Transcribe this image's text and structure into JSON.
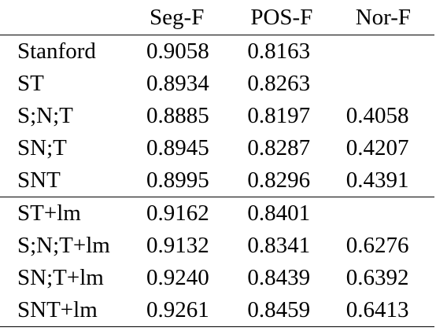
{
  "table": {
    "headers": [
      "",
      "Seg-F",
      "POS-F",
      "Nor-F"
    ],
    "groups": [
      {
        "rows": [
          {
            "label": "Stanford",
            "seg": "0.9058",
            "pos": "0.8163",
            "nor": "",
            "bold": [
              "seg"
            ]
          },
          {
            "label": "ST",
            "seg": "0.8934",
            "pos": "0.8263",
            "nor": "",
            "bold": []
          },
          {
            "label": "S;N;T",
            "seg": "0.8885",
            "pos": "0.8197",
            "nor": "0.4058",
            "bold": []
          },
          {
            "label": "SN;T",
            "seg": "0.8945",
            "pos": "0.8287",
            "nor": "0.4207",
            "bold": []
          },
          {
            "label": "SNT",
            "seg": "0.8995",
            "pos": "0.8296",
            "nor": "0.4391",
            "bold": [
              "pos",
              "nor"
            ]
          }
        ]
      },
      {
        "rows": [
          {
            "label": "ST+lm",
            "seg": "0.9162",
            "pos": "0.8401",
            "nor": "",
            "bold": []
          },
          {
            "label": "S;N;T+lm",
            "seg": "0.9132",
            "pos": "0.8341",
            "nor": "0.6276",
            "bold": []
          },
          {
            "label": "SN;T+lm",
            "seg": "0.9240",
            "pos": "0.8439",
            "nor": "0.6392",
            "bold": []
          },
          {
            "label": "SNT+lm",
            "seg": "0.9261",
            "pos": "0.8459",
            "nor": "0.6413",
            "bold": [
              "seg",
              "pos",
              "nor"
            ]
          }
        ]
      }
    ]
  }
}
